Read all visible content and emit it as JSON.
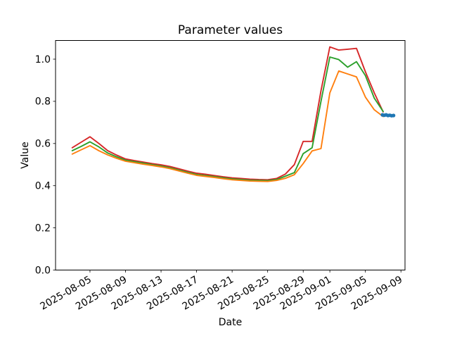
{
  "chart_data": {
    "type": "line",
    "title": "Parameter values",
    "xlabel": "Date",
    "ylabel": "Value",
    "grid": false,
    "legend": null,
    "background": "#ffffff",
    "axis_color": "#000000",
    "xlim": [
      "2025-08-01T03",
      "2025-09-09T11"
    ],
    "ylim": [
      0,
      1.0885
    ],
    "x_ticks": [
      "2025-08-05",
      "2025-08-09",
      "2025-08-13",
      "2025-08-17",
      "2025-08-21",
      "2025-08-25",
      "2025-08-29",
      "2025-09-01",
      "2025-09-05",
      "2025-09-09"
    ],
    "y_ticks": [
      0.0,
      0.2,
      0.4,
      0.6,
      0.8,
      1.0
    ],
    "x": [
      "2025-08-03",
      "2025-08-04",
      "2025-08-05",
      "2025-08-06",
      "2025-08-07",
      "2025-08-08",
      "2025-08-09",
      "2025-08-10",
      "2025-08-11",
      "2025-08-12",
      "2025-08-13",
      "2025-08-14",
      "2025-08-15",
      "2025-08-16",
      "2025-08-17",
      "2025-08-18",
      "2025-08-19",
      "2025-08-20",
      "2025-08-21",
      "2025-08-22",
      "2025-08-23",
      "2025-08-24",
      "2025-08-25",
      "2025-08-26",
      "2025-08-27",
      "2025-08-28",
      "2025-08-29",
      "2025-08-30",
      "2025-08-31",
      "2025-09-01",
      "2025-09-02",
      "2025-09-03",
      "2025-09-04",
      "2025-09-05",
      "2025-09-06",
      "2025-09-07"
    ],
    "series": [
      {
        "name": "red",
        "color": "#d62728",
        "values": [
          0.58,
          0.606,
          0.632,
          0.6,
          0.566,
          0.545,
          0.527,
          0.519,
          0.512,
          0.505,
          0.499,
          0.491,
          0.48,
          0.469,
          0.459,
          0.454,
          0.448,
          0.442,
          0.437,
          0.434,
          0.431,
          0.429,
          0.428,
          0.434,
          0.455,
          0.5,
          0.61,
          0.61,
          0.85,
          1.058,
          1.043,
          1.047,
          1.051,
          0.94,
          0.84,
          0.75
        ]
      },
      {
        "name": "green",
        "color": "#2ca02c",
        "values": [
          0.566,
          0.586,
          0.608,
          0.584,
          0.555,
          0.537,
          0.521,
          0.514,
          0.507,
          0.5,
          0.493,
          0.485,
          0.474,
          0.463,
          0.453,
          0.448,
          0.443,
          0.437,
          0.432,
          0.429,
          0.426,
          0.425,
          0.424,
          0.429,
          0.445,
          0.462,
          0.552,
          0.58,
          0.8,
          1.01,
          0.998,
          0.962,
          0.988,
          0.922,
          0.815,
          0.752
        ]
      },
      {
        "name": "orange",
        "color": "#ff7f0e",
        "values": [
          0.55,
          0.57,
          0.59,
          0.566,
          0.546,
          0.53,
          0.516,
          0.509,
          0.502,
          0.496,
          0.489,
          0.481,
          0.47,
          0.459,
          0.449,
          0.444,
          0.439,
          0.433,
          0.428,
          0.425,
          0.422,
          0.421,
          0.42,
          0.425,
          0.435,
          0.452,
          0.505,
          0.565,
          0.576,
          0.84,
          0.944,
          0.93,
          0.916,
          0.82,
          0.76,
          0.728
        ]
      }
    ],
    "scatter": {
      "name": "blue-markers",
      "color": "#1f77b4",
      "points": [
        [
          "2025-09-06T22",
          0.736
        ],
        [
          "2025-09-07T03",
          0.734
        ],
        [
          "2025-09-07T08",
          0.736
        ],
        [
          "2025-09-07T13",
          0.733
        ],
        [
          "2025-09-07T18",
          0.734
        ],
        [
          "2025-09-07T23",
          0.732
        ],
        [
          "2025-09-08T04",
          0.733
        ]
      ]
    }
  }
}
